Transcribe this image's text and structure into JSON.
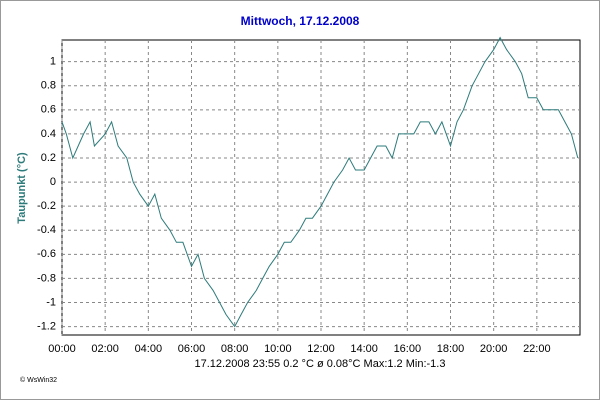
{
  "chart_data": {
    "type": "line",
    "title": "Mittwoch, 17.12.2008",
    "y_label": "Taupunkt  (°C)",
    "footer": "17.12.2008  23:55   0.2 °C   ø 0.08°C  Max:1.2  Min:-1.3",
    "credit": "© WsWin32",
    "x": [
      0,
      0.2,
      0.5,
      1,
      1.3,
      1.5,
      2,
      2.3,
      2.6,
      3,
      3.3,
      3.6,
      4,
      4.3,
      4.6,
      5,
      5.3,
      5.6,
      6,
      6.3,
      6.6,
      7,
      7.3,
      7.6,
      8,
      8.3,
      8.6,
      9,
      9.3,
      9.6,
      10,
      10.3,
      10.6,
      11,
      11.3,
      11.6,
      12,
      12.3,
      12.6,
      13,
      13.3,
      13.6,
      14,
      14.3,
      14.6,
      15,
      15.3,
      15.6,
      16,
      16.3,
      16.6,
      17,
      17.3,
      17.6,
      18,
      18.3,
      18.6,
      19,
      19.3,
      19.6,
      20,
      20.3,
      20.6,
      21,
      21.3,
      21.6,
      22,
      22.3,
      22.6,
      23,
      23.3,
      23.6,
      23.9
    ],
    "series": [
      {
        "name": "Taupunkt",
        "color": "#2e7b7b",
        "values": [
          0.5,
          0.4,
          0.2,
          0.4,
          0.5,
          0.3,
          0.4,
          0.5,
          0.3,
          0.2,
          0.0,
          -0.1,
          -0.2,
          -0.1,
          -0.3,
          -0.4,
          -0.5,
          -0.5,
          -0.7,
          -0.6,
          -0.8,
          -0.9,
          -1.0,
          -1.1,
          -1.2,
          -1.1,
          -1.0,
          -0.9,
          -0.8,
          -0.7,
          -0.6,
          -0.5,
          -0.5,
          -0.4,
          -0.3,
          -0.3,
          -0.2,
          -0.1,
          0.0,
          0.1,
          0.2,
          0.1,
          0.1,
          0.2,
          0.3,
          0.3,
          0.2,
          0.4,
          0.4,
          0.4,
          0.5,
          0.5,
          0.4,
          0.5,
          0.3,
          0.5,
          0.6,
          0.8,
          0.9,
          1.0,
          1.1,
          1.2,
          1.1,
          1.0,
          0.9,
          0.7,
          0.7,
          0.6,
          0.6,
          0.6,
          0.5,
          0.4,
          0.2
        ]
      }
    ],
    "xlim": [
      0,
      24
    ],
    "xticks": [
      {
        "value": 0,
        "label": "00:00"
      },
      {
        "value": 2,
        "label": "02:00"
      },
      {
        "value": 4,
        "label": "04:00"
      },
      {
        "value": 6,
        "label": "06:00"
      },
      {
        "value": 8,
        "label": "08:00"
      },
      {
        "value": 10,
        "label": "10:00"
      },
      {
        "value": 12,
        "label": "12:00"
      },
      {
        "value": 14,
        "label": "14:00"
      },
      {
        "value": 16,
        "label": "16:00"
      },
      {
        "value": 18,
        "label": "18:00"
      },
      {
        "value": 20,
        "label": "20:00"
      },
      {
        "value": 22,
        "label": "22:00"
      }
    ],
    "ylim": [
      -1.27,
      1.18
    ],
    "yticks": [
      -1.2,
      -1,
      -0.8,
      -0.6,
      -0.4,
      -0.2,
      0,
      0.2,
      0.4,
      0.6,
      0.8,
      1
    ],
    "grid": true
  }
}
